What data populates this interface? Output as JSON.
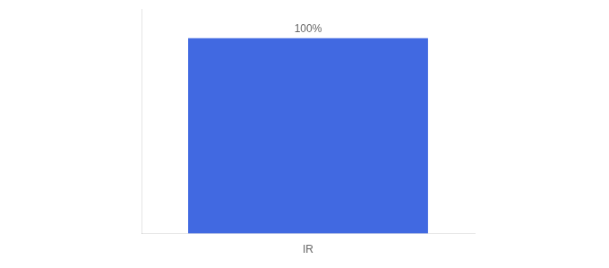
{
  "chart_data": {
    "type": "bar",
    "categories": [
      "IR"
    ],
    "values": [
      100
    ],
    "value_labels": [
      "100%"
    ],
    "color": "#4169e1",
    "ylim": [
      0,
      115
    ],
    "grid": false,
    "data_labels": true,
    "tick_labels": "x"
  }
}
